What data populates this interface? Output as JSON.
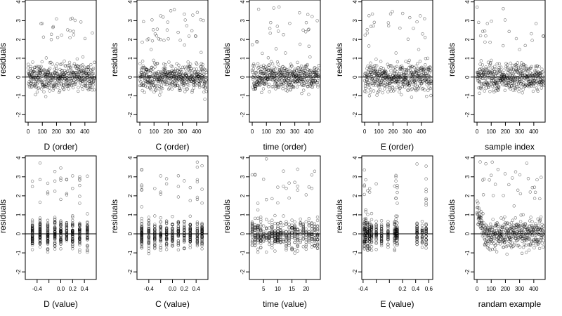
{
  "chart_data": [
    {
      "type": "scatter",
      "xlabel": "D (order)",
      "ylabel": "residuals",
      "xlim": [
        -20,
        480
      ],
      "ylim": [
        -2.4,
        4.1
      ],
      "xticks": [
        0,
        100,
        200,
        300,
        400
      ],
      "xtick_labels": [
        "0",
        "100",
        "200",
        "300",
        "400"
      ],
      "yticks": [
        -2,
        -1,
        0,
        1,
        2,
        3,
        4
      ],
      "ytick_labels": [
        "-2",
        "-1",
        "0",
        "1",
        "2",
        "3",
        "4"
      ],
      "hline": 0,
      "x_mode": "order",
      "n_points": 470
    },
    {
      "type": "scatter",
      "xlabel": "C (order)",
      "ylabel": "residuals",
      "xlim": [
        -20,
        480
      ],
      "ylim": [
        -2.4,
        4.1
      ],
      "xticks": [
        0,
        100,
        200,
        300,
        400
      ],
      "xtick_labels": [
        "0",
        "100",
        "200",
        "300",
        "400"
      ],
      "yticks": [
        -2,
        -1,
        0,
        1,
        2,
        3,
        4
      ],
      "ytick_labels": [
        "-2",
        "-1",
        "0",
        "1",
        "2",
        "3",
        "4"
      ],
      "hline": 0,
      "x_mode": "order",
      "n_points": 470
    },
    {
      "type": "scatter",
      "xlabel": "time (order)",
      "ylabel": "residuals",
      "xlim": [
        -20,
        480
      ],
      "ylim": [
        -2.4,
        4.1
      ],
      "xticks": [
        0,
        100,
        200,
        300,
        400
      ],
      "xtick_labels": [
        "0",
        "100",
        "200",
        "300",
        "400"
      ],
      "yticks": [
        -2,
        -1,
        0,
        1,
        2,
        3,
        4
      ],
      "ytick_labels": [
        "-2",
        "-1",
        "0",
        "1",
        "2",
        "3",
        "4"
      ],
      "hline": 0,
      "x_mode": "order",
      "n_points": 470
    },
    {
      "type": "scatter",
      "xlabel": "E (order)",
      "ylabel": "residuals",
      "xlim": [
        -20,
        480
      ],
      "ylim": [
        -2.4,
        4.1
      ],
      "xticks": [
        0,
        100,
        200,
        300,
        400
      ],
      "xtick_labels": [
        "0",
        "100",
        "200",
        "300",
        "400"
      ],
      "yticks": [
        -2,
        -1,
        0,
        1,
        2,
        3,
        4
      ],
      "ytick_labels": [
        "-2",
        "-1",
        "0",
        "1",
        "2",
        "3",
        "4"
      ],
      "hline": 0,
      "x_mode": "order",
      "n_points": 470
    },
    {
      "type": "scatter",
      "xlabel": "sample index",
      "ylabel": "residuals",
      "xlim": [
        -20,
        480
      ],
      "ylim": [
        -2.4,
        4.1
      ],
      "xticks": [
        0,
        100,
        200,
        300,
        400
      ],
      "xtick_labels": [
        "0",
        "100",
        "200",
        "300",
        "400"
      ],
      "yticks": [
        -2,
        -1,
        0,
        1,
        2,
        3,
        4
      ],
      "ytick_labels": [
        "-2",
        "-1",
        "0",
        "1",
        "2",
        "3",
        "4"
      ],
      "hline": 0,
      "x_mode": "order",
      "n_points": 470
    },
    {
      "type": "scatter",
      "xlabel": "D (value)",
      "ylabel": "residuals",
      "xlim": [
        -0.6,
        0.6
      ],
      "ylim": [
        -2.4,
        4.1
      ],
      "xticks": [
        -0.4,
        -0.2,
        0,
        0.2,
        0.4
      ],
      "xtick_labels": [
        "-0.4",
        "",
        "0.0",
        "0.2",
        "0.4"
      ],
      "yticks": [
        -2,
        -1,
        0,
        1,
        2,
        3,
        4
      ],
      "ytick_labels": [
        "-2",
        "-1",
        "0",
        "1",
        "2",
        "3",
        "4"
      ],
      "hline": 0,
      "x_mode": "value",
      "x_levels": [
        -0.48,
        -0.35,
        -0.22,
        -0.1,
        0.0,
        0.1,
        0.2,
        0.32,
        0.45
      ],
      "n_points": 470
    },
    {
      "type": "scatter",
      "xlabel": "C (value)",
      "ylabel": "residuals",
      "xlim": [
        -0.6,
        0.6
      ],
      "ylim": [
        -2.4,
        4.1
      ],
      "xticks": [
        -0.4,
        -0.2,
        0,
        0.2,
        0.4
      ],
      "xtick_labels": [
        "-0.4",
        "",
        "0.0",
        "0.2",
        "0.4"
      ],
      "yticks": [
        -2,
        -1,
        0,
        1,
        2,
        3,
        4
      ],
      "ytick_labels": [
        "-2",
        "-1",
        "0",
        "1",
        "2",
        "3",
        "4"
      ],
      "hline": 0,
      "x_mode": "value",
      "x_levels": [
        -0.52,
        -0.4,
        -0.3,
        -0.2,
        -0.1,
        0.0,
        0.1,
        0.2,
        0.3,
        0.42,
        0.5
      ],
      "n_points": 470
    },
    {
      "type": "scatter",
      "xlabel": "time (value)",
      "ylabel": "residuals",
      "xlim": [
        0,
        25
      ],
      "ylim": [
        -2.4,
        4.1
      ],
      "xticks": [
        5,
        10,
        15,
        20
      ],
      "xtick_labels": [
        "5",
        "10",
        "15",
        "20"
      ],
      "yticks": [
        -2,
        -1,
        0,
        1,
        2,
        3,
        4
      ],
      "ytick_labels": [
        "-2",
        "-1",
        "0",
        "1",
        "2",
        "3",
        "4"
      ],
      "hline": 0,
      "x_mode": "value",
      "x_levels": [
        1,
        2,
        3,
        4,
        5,
        6,
        7,
        8,
        9,
        10,
        11,
        12,
        13,
        14,
        15,
        16,
        17,
        18,
        19,
        20,
        21,
        22,
        23,
        24
      ],
      "n_points": 470
    },
    {
      "type": "scatter",
      "xlabel": "E (value)",
      "ylabel": "residuals",
      "xlim": [
        -0.42,
        0.66
      ],
      "ylim": [
        -2.4,
        4.1
      ],
      "xticks": [
        -0.4,
        -0.2,
        0,
        0.2,
        0.4,
        0.6
      ],
      "xtick_labels": [
        "-0.4",
        "",
        "",
        "0.2",
        "0.4",
        "0.6"
      ],
      "yticks": [
        -2,
        -1,
        0,
        1,
        2,
        3,
        4
      ],
      "ytick_labels": [
        "-2",
        "-1",
        "0",
        "1",
        "2",
        "3",
        "4"
      ],
      "hline": 0,
      "x_mode": "value",
      "x_levels": [
        -0.38,
        -0.36,
        -0.33,
        -0.3,
        -0.27,
        -0.2,
        -0.12,
        -0.02,
        0.08,
        0.1,
        0.12,
        0.42,
        0.5,
        0.56
      ],
      "n_points": 470
    },
    {
      "type": "scatter",
      "xlabel": "randam example",
      "ylabel": "residuals",
      "xlim": [
        -20,
        480
      ],
      "ylim": [
        -2.4,
        4.1
      ],
      "xticks": [
        0,
        100,
        200,
        300,
        400
      ],
      "xtick_labels": [
        "0",
        "100",
        "200",
        "300",
        "400"
      ],
      "yticks": [
        -2,
        -1,
        0,
        1,
        2,
        3,
        4
      ],
      "ytick_labels": [
        "-2",
        "-1",
        "0",
        "1",
        "2",
        "3",
        "4"
      ],
      "hline": 0,
      "x_mode": "order",
      "n_points": 470
    }
  ]
}
